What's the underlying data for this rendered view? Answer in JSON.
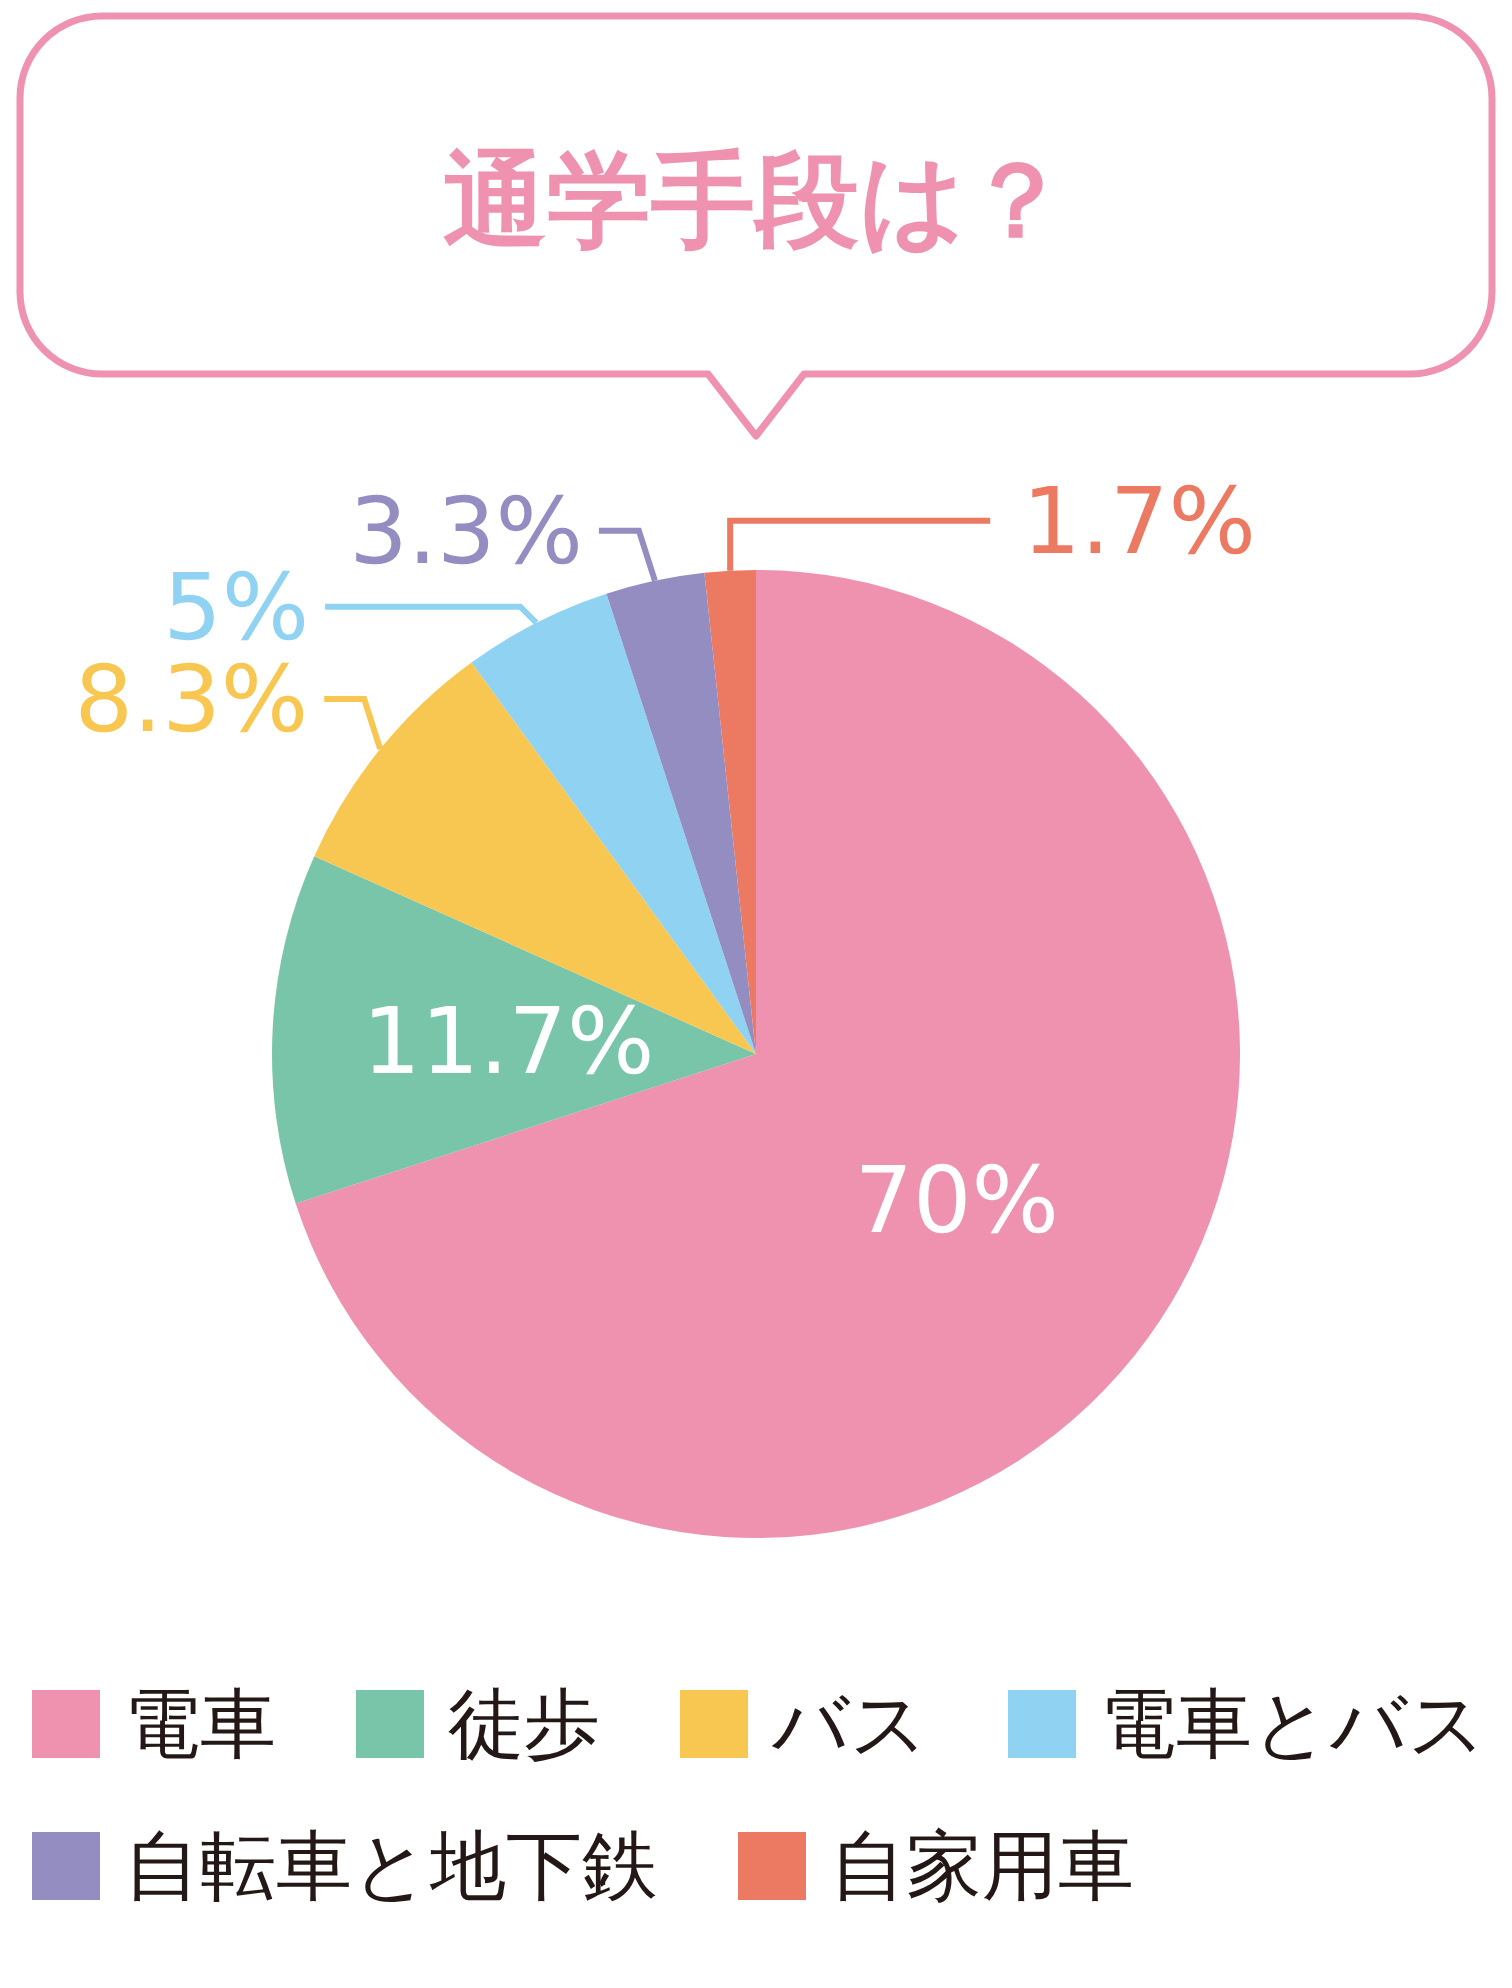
{
  "chart_data": {
    "type": "pie",
    "title": "通学手段は？",
    "categories": [
      "電車",
      "徒歩",
      "バス",
      "電車とバス",
      "自転車と地下鉄",
      "自家用車"
    ],
    "values": [
      70,
      11.7,
      8.3,
      5,
      3.3,
      1.7
    ],
    "colors": [
      "#ef92b0",
      "#78c5aa",
      "#f8c752",
      "#90d2f2",
      "#938dc2",
      "#ec7a62"
    ],
    "value_labels": [
      "70%",
      "11.7%",
      "8.3%",
      "5%",
      "3.3%",
      "1.7%"
    ],
    "legend": "bottom"
  }
}
